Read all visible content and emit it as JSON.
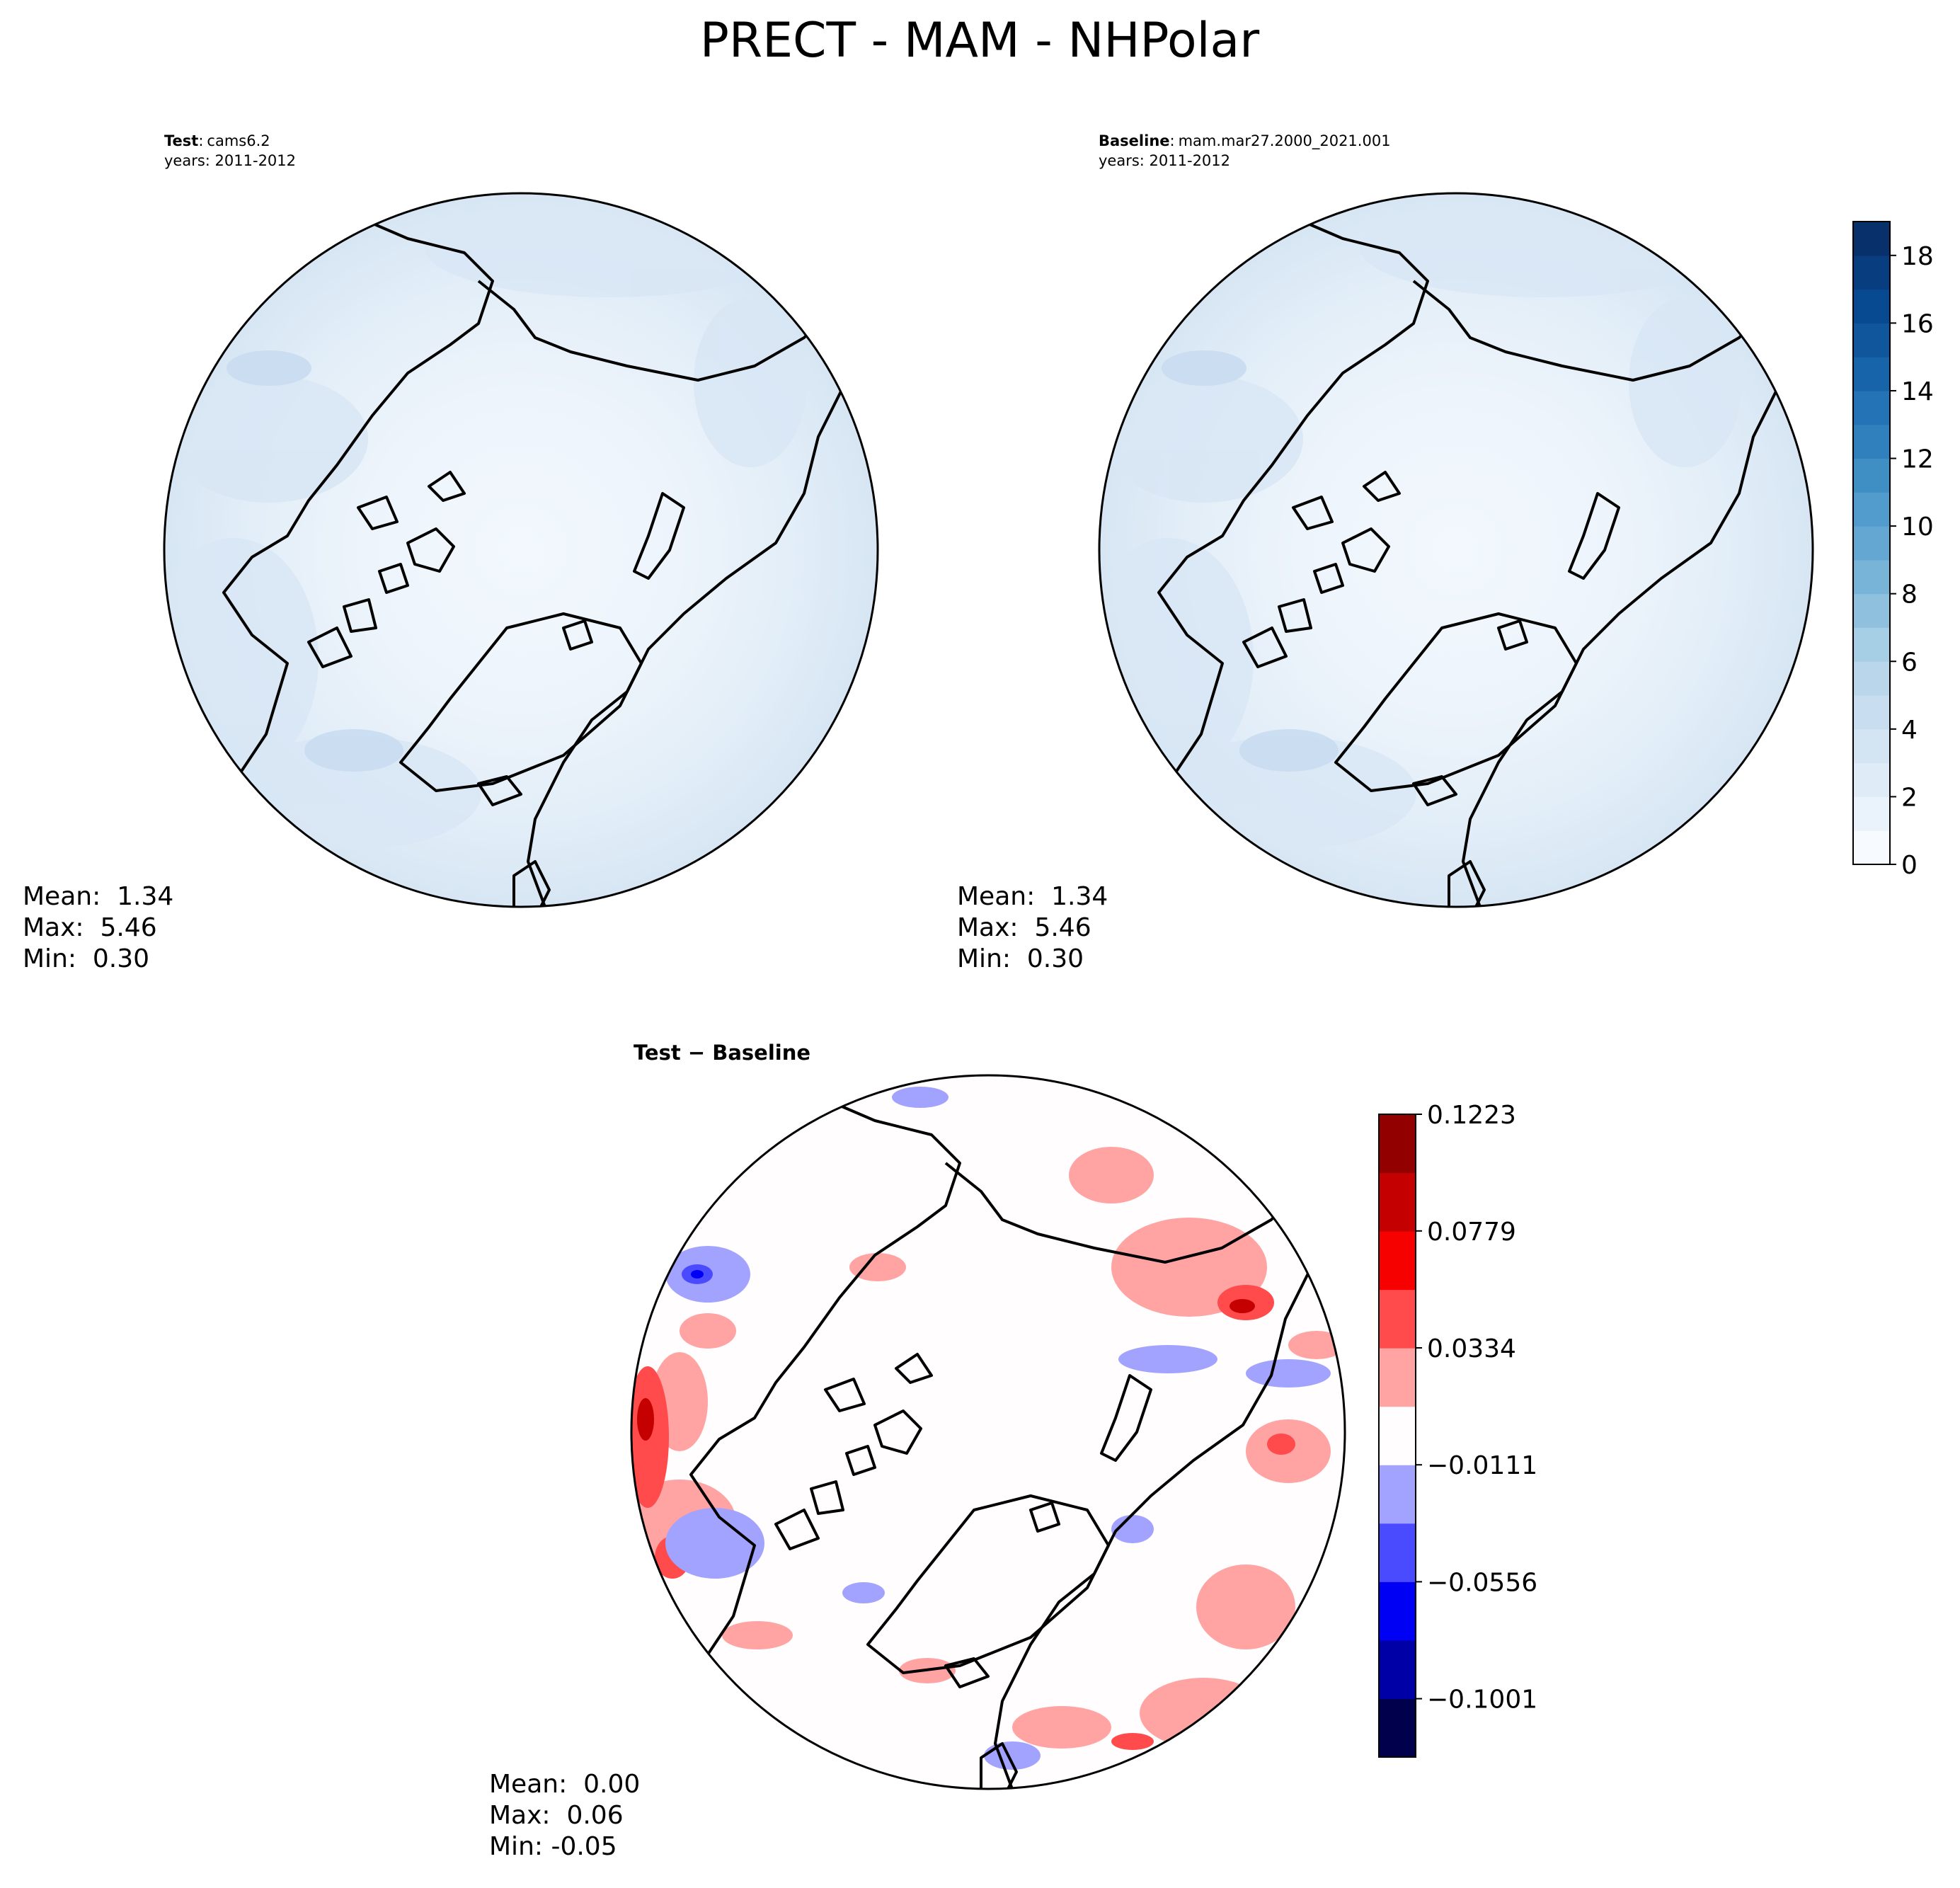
{
  "figure": {
    "title": "PRECT - MAM - NHPolar"
  },
  "chart_data": [
    {
      "type": "heatmap",
      "projection": "north-polar-stereographic",
      "variable": "PRECT",
      "label_bold": "Test",
      "label_sep": ":",
      "label_value": "cams6.2",
      "years": "years: 2011-2012",
      "stats": {
        "mean_label": "Mean:  1.34",
        "max_label": "Max:  5.46",
        "min_label": "Min:  0.30",
        "mean": 1.34,
        "max": 5.46,
        "min": 0.3
      },
      "colormap": "Blues",
      "level_range": [
        0,
        19
      ]
    },
    {
      "type": "heatmap",
      "projection": "north-polar-stereographic",
      "variable": "PRECT",
      "label_bold": "Baseline",
      "label_sep": ":",
      "label_value": "mam.mar27.2000_2021.001",
      "years": "years: 2011-2012",
      "stats": {
        "mean_label": "Mean:  1.34",
        "max_label": "Max:  5.46",
        "min_label": "Min:  0.30",
        "mean": 1.34,
        "max": 5.46,
        "min": 0.3
      },
      "colormap": "Blues",
      "level_range": [
        0,
        19
      ],
      "colorbar": {
        "ticks": [
          "0",
          "2",
          "4",
          "6",
          "8",
          "10",
          "12",
          "14",
          "16",
          "18"
        ],
        "tick_values": [
          0,
          2,
          4,
          6,
          8,
          10,
          12,
          14,
          16,
          18
        ],
        "min": 0,
        "max": 19,
        "colors": [
          "#f7fbff",
          "#eaf3fb",
          "#dfecf7",
          "#d3e4f3",
          "#c8ddf0",
          "#b9d6ea",
          "#a6cee4",
          "#8fc1de",
          "#78b4d8",
          "#63a7d2",
          "#519ccc",
          "#3f8fc5",
          "#3080bd",
          "#2373b6",
          "#1864aa",
          "#0f569c",
          "#084a91",
          "#083d7f",
          "#08306b"
        ]
      }
    },
    {
      "type": "heatmap",
      "projection": "north-polar-stereographic",
      "variable": "PRECT",
      "label_bold": "Test − Baseline",
      "stats": {
        "mean_label": "Mean:  0.00",
        "max_label": "Max:  0.06",
        "min_label": "Min: -0.05",
        "mean": 0.0,
        "max": 0.06,
        "min": -0.05
      },
      "colormap": "seismic",
      "colorbar": {
        "ticks": [
          "0.1223",
          "0.0779",
          "0.0334",
          "−0.0111",
          "−0.0556",
          "−0.1001"
        ],
        "tick_values": [
          0.1223,
          0.0779,
          0.0334,
          -0.0111,
          -0.0556,
          -0.1001
        ],
        "min": -0.1223,
        "max": 0.1223,
        "colors": [
          "#00004c",
          "#0000a7",
          "#0000f4",
          "#4a4aff",
          "#a2a2ff",
          "#fffdfd",
          "#ffa3a3",
          "#ff4b4b",
          "#f60000",
          "#c50000",
          "#930000"
        ]
      }
    }
  ]
}
